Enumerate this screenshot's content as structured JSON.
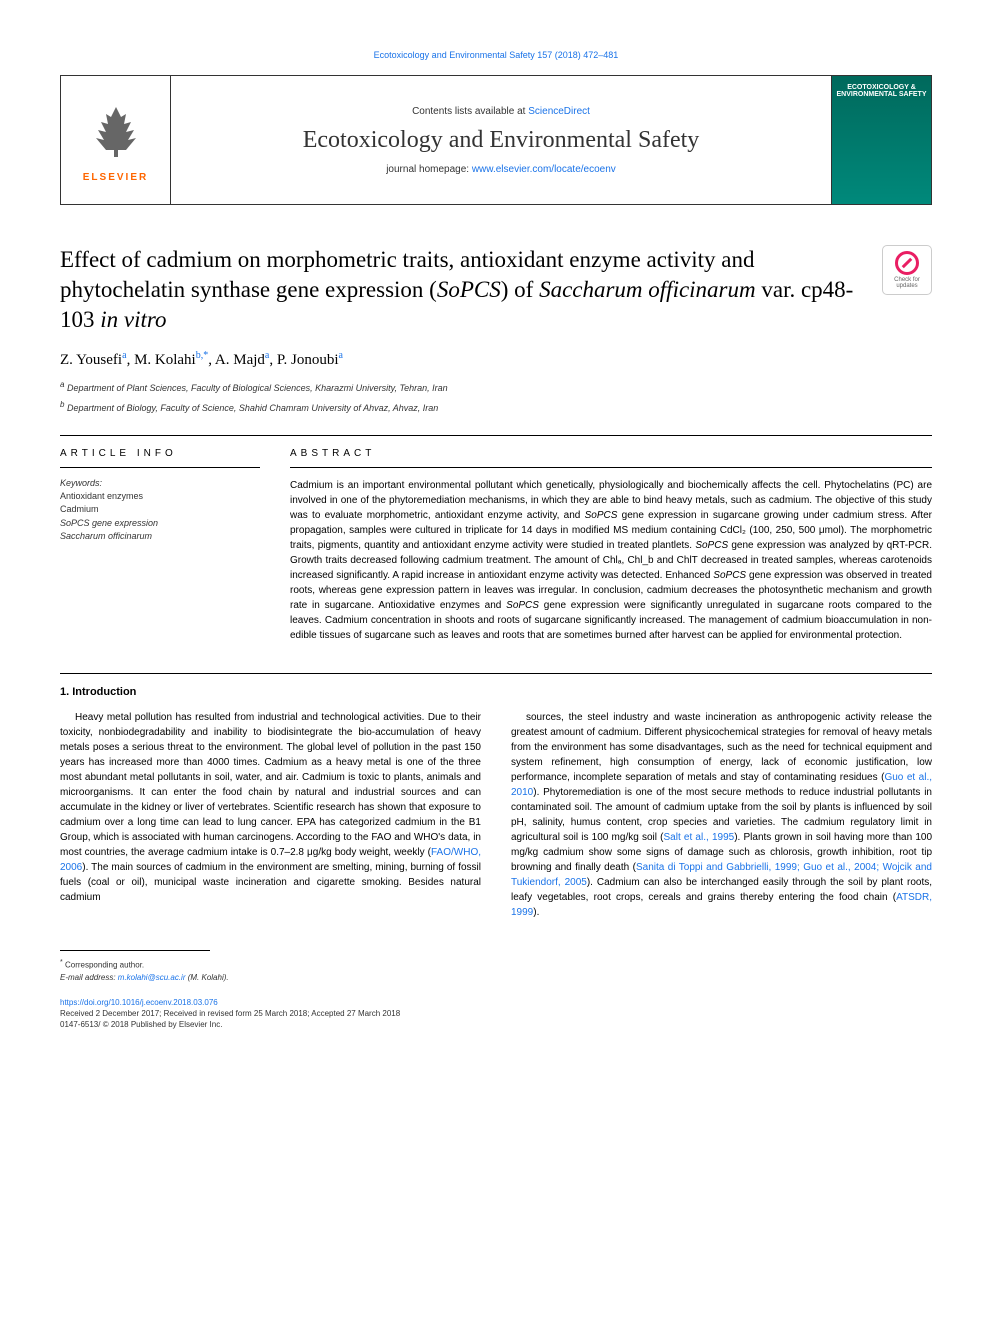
{
  "top_link": "Ecotoxicology and Environmental Safety 157 (2018) 472–481",
  "header": {
    "contents_prefix": "Contents lists available at ",
    "contents_link": "ScienceDirect",
    "journal_name": "Ecotoxicology and Environmental Safety",
    "homepage_prefix": "journal homepage: ",
    "homepage_link": "www.elsevier.com/locate/ecoenv",
    "elsevier_label": "ELSEVIER",
    "cover_text": "ECOTOXICOLOGY & ENVIRONMENTAL SAFETY"
  },
  "article": {
    "title": "Effect of cadmium on morphometric traits, antioxidant enzyme activity and phytochelatin synthase gene expression (<em>SoPCS</em>) of <em>Saccharum officinarum</em> var. cp48-103 <em>in vitro</em>",
    "check_updates": "Check for updates"
  },
  "authors_html": "Z. Yousefi<sup>a</sup>, M. Kolahi<sup>b,</sup><sup>*</sup>, A. Majd<sup>a</sup>, P. Jonoubi<sup>a</sup>",
  "affiliations": {
    "a": "Department of Plant Sciences, Faculty of Biological Sciences, Kharazmi University, Tehran, Iran",
    "b": "Department of Biology, Faculty of Science, Shahid Chamram University of Ahvaz, Ahvaz, Iran"
  },
  "info": {
    "heading": "ARTICLE INFO",
    "keywords_label": "Keywords:",
    "keywords": [
      "Antioxidant enzymes",
      "Cadmium",
      "SoPCS gene expression",
      "Saccharum officinarum"
    ]
  },
  "abstract": {
    "heading": "ABSTRACT",
    "text": "Cadmium is an important environmental pollutant which genetically, physiologically and biochemically affects the cell. Phytochelatins (PC) are involved in one of the phytoremediation mechanisms, in which they are able to bind heavy metals, such as cadmium. The objective of this study was to evaluate morphometric, antioxidant enzyme activity, and <em>SoPCS</em> gene expression in sugarcane growing under cadmium stress. After propagation, samples were cultured in triplicate for 14 days in modified MS medium containing CdCl₂ (100, 250, 500 μmol). The morphometric traits, pigments, quantity and antioxidant enzyme activity were studied in treated plantlets. <em>SoPCS</em> gene expression was analyzed by qRT-PCR. Growth traits decreased following cadmium treatment. The amount of Chlₐ, Chl_b and ChlT decreased in treated samples, whereas carotenoids increased significantly. A rapid increase in antioxidant enzyme activity was detected. Enhanced <em>SoPCS</em> gene expression was observed in treated roots, whereas gene expression pattern in leaves was irregular. In conclusion, cadmium decreases the photosynthetic mechanism and growth rate in sugarcane. Antioxidative enzymes and <em>SoPCS</em> gene expression were significantly unregulated in sugarcane roots compared to the leaves. Cadmium concentration in shoots and roots of sugarcane significantly increased. The management of cadmium bioaccumulation in non-edible tissues of sugarcane such as leaves and roots that are sometimes burned after harvest can be applied for environmental protection."
  },
  "intro": {
    "heading": "1. Introduction",
    "col1": "Heavy metal pollution has resulted from industrial and technological activities. Due to their toxicity, nonbiodegradability and inability to biodisintegrate the bio-accumulation of heavy metals poses a serious threat to the environment. The global level of pollution in the past 150 years has increased more than 4000 times. Cadmium as a heavy metal is one of the three most abundant metal pollutants in soil, water, and air. Cadmium is toxic to plants, animals and microorganisms. It can enter the food chain by natural and industrial sources and can accumulate in the kidney or liver of vertebrates. Scientific research has shown that exposure to cadmium over a long time can lead to lung cancer. EPA has categorized cadmium in the B1 Group, which is associated with human carcinogens. According to the FAO and WHO's data, in most countries, the average cadmium intake is 0.7–2.8 μg/kg body weight, weekly (<a>FAO/WHO, 2006</a>). The main sources of cadmium in the environment are smelting, mining, burning of fossil fuels (coal or oil), municipal waste incineration and cigarette smoking. Besides natural cadmium",
    "col2": "sources, the steel industry and waste incineration as anthropogenic activity release the greatest amount of cadmium. Different physicochemical strategies for removal of heavy metals from the environment has some disadvantages, such as the need for technical equipment and system refinement, high consumption of energy, lack of economic justification, low performance, incomplete separation of metals and stay of contaminating residues (<a>Guo et al., 2010</a>). Phytoremediation is one of the most secure methods to reduce industrial pollutants in contaminated soil. The amount of cadmium uptake from the soil by plants is influenced by soil pH, salinity, humus content, crop species and varieties. The cadmium regulatory limit in agricultural soil is 100 mg/kg soil (<a>Salt et al., 1995</a>). Plants grown in soil having more than 100 mg/kg cadmium show some signs of damage such as chlorosis, growth inhibition, root tip browning and finally death (<a>Sanita di Toppi and Gabbrielli, 1999; Guo et al., 2004; Wojcik and Tukiendorf, 2005</a>). Cadmium can also be interchanged easily through the soil by plant roots, leafy vegetables, root crops, cereals and grains thereby entering the food chain (<a>ATSDR, 1999</a>)."
  },
  "footer": {
    "corresponding": "Corresponding author.",
    "email_label": "E-mail address: ",
    "email": "m.kolahi@scu.ac.ir",
    "email_suffix": " (M. Kolahi).",
    "doi": "https://doi.org/10.1016/j.ecoenv.2018.03.076",
    "received": "Received 2 December 2017; Received in revised form 25 March 2018; Accepted 27 March 2018",
    "copyright": "0147-6513/ © 2018 Published by Elsevier Inc."
  },
  "colors": {
    "link": "#1a73e8",
    "elsevier_orange": "#ff6600",
    "cover_bg": "#00695c",
    "text": "#000000",
    "text_muted": "#333333",
    "border": "#000000"
  },
  "typography": {
    "body_font": "Arial, sans-serif",
    "serif_font": "Times New Roman, serif",
    "title_size": 23,
    "journal_title_size": 24,
    "body_size": 10,
    "small_size": 9,
    "footer_size": 8
  }
}
